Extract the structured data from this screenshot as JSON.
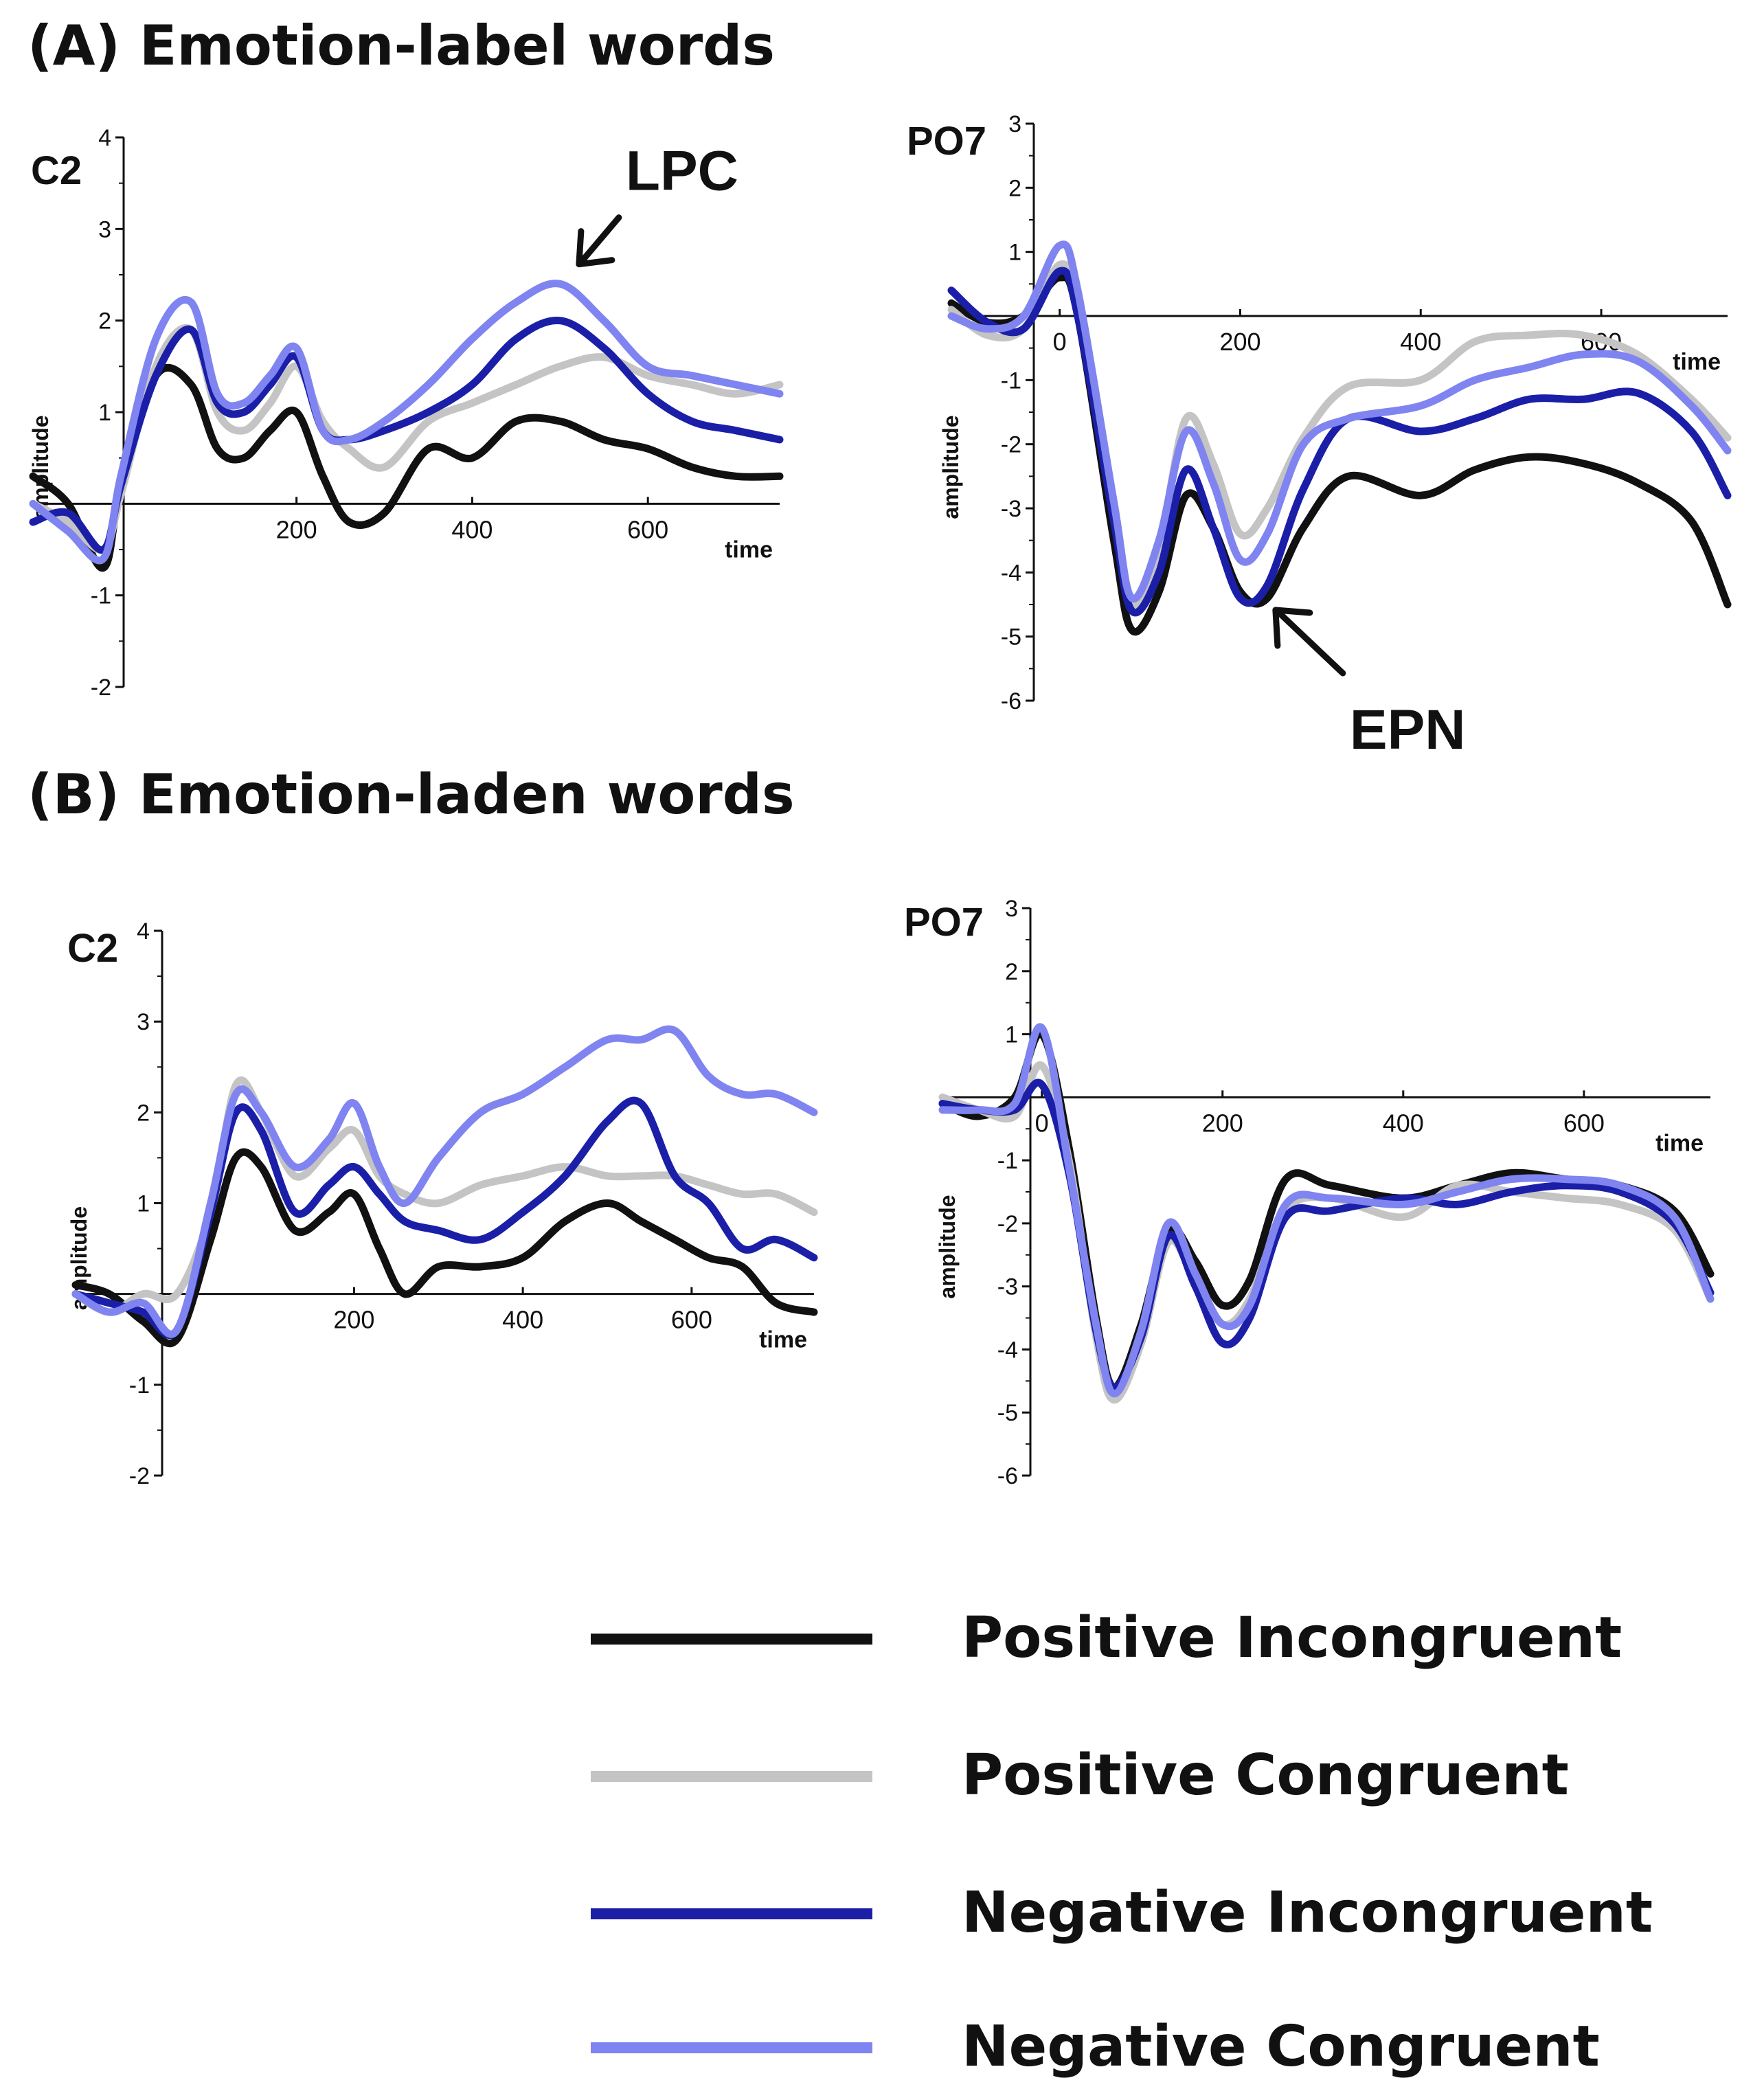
{
  "section_a_title": "(A) Emotion-label words",
  "section_b_title": "(B) Emotion-laden words",
  "legend": [
    {
      "label": "Positive Incongruent",
      "color": "#111111"
    },
    {
      "label": "Positive Congruent",
      "color": "#c4c4c4"
    },
    {
      "label": "Negative Incongruent",
      "color": "#1b1fa8"
    },
    {
      "label": "Negative Congruent",
      "color": "#7f84f0"
    }
  ],
  "chart_data": [
    {
      "type": "line",
      "title": "C2",
      "section": "A",
      "xlabel": "time",
      "ylabel": "amplitude",
      "xlim": [
        -100,
        750
      ],
      "ylim": [
        -2,
        4
      ],
      "xticks": [
        200,
        400,
        600
      ],
      "yticks": [
        -2,
        -1,
        1,
        2,
        3,
        4
      ],
      "annotation": {
        "text": "LPC",
        "at": [
          520,
          2.6
        ]
      },
      "x": [
        -100,
        -60,
        -20,
        0,
        40,
        80,
        110,
        140,
        170,
        200,
        230,
        260,
        300,
        350,
        400,
        450,
        500,
        550,
        600,
        650,
        700,
        750
      ],
      "series": [
        {
          "name": "Positive Incongruent",
          "values": [
            0.3,
            0.0,
            -0.7,
            0.2,
            1.4,
            1.3,
            0.6,
            0.5,
            0.8,
            1.0,
            0.3,
            -0.2,
            -0.1,
            0.6,
            0.5,
            0.9,
            0.9,
            0.7,
            0.6,
            0.4,
            0.3,
            0.3
          ]
        },
        {
          "name": "Positive Congruent",
          "values": [
            0.0,
            -0.2,
            -0.5,
            0.1,
            1.5,
            1.9,
            1.0,
            0.8,
            1.1,
            1.5,
            0.9,
            0.6,
            0.4,
            0.9,
            1.1,
            1.3,
            1.5,
            1.6,
            1.4,
            1.3,
            1.2,
            1.3
          ]
        },
        {
          "name": "Negative Incongruent",
          "values": [
            -0.2,
            -0.1,
            -0.5,
            0.2,
            1.4,
            1.9,
            1.1,
            1.0,
            1.3,
            1.6,
            0.8,
            0.7,
            0.8,
            1.0,
            1.3,
            1.8,
            2.0,
            1.7,
            1.2,
            0.9,
            0.8,
            0.7
          ]
        },
        {
          "name": "Negative Congruent",
          "values": [
            0.0,
            -0.3,
            -0.6,
            0.3,
            1.8,
            2.2,
            1.2,
            1.1,
            1.4,
            1.7,
            0.8,
            0.7,
            0.9,
            1.3,
            1.8,
            2.2,
            2.4,
            2.0,
            1.5,
            1.4,
            1.3,
            1.2
          ]
        }
      ]
    },
    {
      "type": "line",
      "title": "PO7",
      "section": "A",
      "xlabel": "time",
      "ylabel": "amplitude",
      "xlim": [
        -120,
        740
      ],
      "ylim": [
        -6,
        3
      ],
      "xticks": [
        0,
        200,
        400,
        600
      ],
      "yticks": [
        -6,
        -5,
        -4,
        -3,
        -2,
        -1,
        1,
        2,
        3
      ],
      "annotation": {
        "text": "EPN",
        "at": [
          230,
          -4.5
        ]
      },
      "x": [
        -120,
        -80,
        -40,
        0,
        20,
        60,
        80,
        110,
        140,
        170,
        200,
        230,
        270,
        320,
        400,
        460,
        520,
        580,
        640,
        700,
        740
      ],
      "series": [
        {
          "name": "Positive Incongruent",
          "values": [
            0.2,
            -0.1,
            0.0,
            0.6,
            0.0,
            -3.5,
            -4.9,
            -4.3,
            -2.8,
            -3.3,
            -4.3,
            -4.4,
            -3.3,
            -2.5,
            -2.8,
            -2.4,
            -2.2,
            -2.3,
            -2.6,
            -3.2,
            -4.5
          ]
        },
        {
          "name": "Positive Congruent",
          "values": [
            0.1,
            -0.3,
            -0.2,
            0.8,
            0.1,
            -3.0,
            -4.5,
            -3.6,
            -1.6,
            -2.3,
            -3.4,
            -3.0,
            -1.9,
            -1.1,
            -1.0,
            -0.4,
            -0.3,
            -0.3,
            -0.6,
            -1.3,
            -1.9
          ]
        },
        {
          "name": "Negative Incongruent",
          "values": [
            0.4,
            -0.1,
            -0.2,
            0.7,
            0.0,
            -3.2,
            -4.6,
            -4.0,
            -2.4,
            -3.3,
            -4.4,
            -4.2,
            -2.7,
            -1.6,
            -1.8,
            -1.6,
            -1.3,
            -1.3,
            -1.2,
            -1.8,
            -2.8
          ]
        },
        {
          "name": "Negative Congruent",
          "values": [
            0.0,
            -0.2,
            0.0,
            1.1,
            0.4,
            -2.9,
            -4.4,
            -3.5,
            -1.8,
            -2.6,
            -3.8,
            -3.4,
            -2.0,
            -1.6,
            -1.4,
            -1.0,
            -0.8,
            -0.6,
            -0.7,
            -1.4,
            -2.1
          ]
        }
      ]
    },
    {
      "type": "line",
      "title": "C2",
      "section": "B",
      "xlabel": "time",
      "ylabel": "amplitude",
      "xlim": [
        -130,
        745
      ],
      "ylim": [
        -2,
        4
      ],
      "xticks": [
        200,
        400,
        600
      ],
      "yticks": [
        -2,
        -1,
        1,
        2,
        3,
        4
      ],
      "x": [
        -130,
        -90,
        -50,
        -10,
        30,
        60,
        90,
        130,
        170,
        200,
        230,
        260,
        300,
        350,
        400,
        450,
        500,
        540,
        580,
        620,
        660,
        700,
        745
      ],
      "series": [
        {
          "name": "Positive Incongruent",
          "values": [
            0.1,
            0.0,
            -0.3,
            -0.5,
            0.6,
            1.5,
            1.4,
            0.7,
            0.9,
            1.1,
            0.5,
            0.0,
            0.3,
            0.3,
            0.4,
            0.8,
            1.0,
            0.8,
            0.6,
            0.4,
            0.3,
            -0.1,
            -0.2
          ]
        },
        {
          "name": "Positive Congruent",
          "values": [
            0.0,
            -0.2,
            0.0,
            0.0,
            0.9,
            2.3,
            2.0,
            1.3,
            1.6,
            1.8,
            1.3,
            1.1,
            1.0,
            1.2,
            1.3,
            1.4,
            1.3,
            1.3,
            1.3,
            1.2,
            1.1,
            1.1,
            0.9
          ]
        },
        {
          "name": "Negative Incongruent",
          "values": [
            0.0,
            -0.1,
            -0.2,
            -0.4,
            0.9,
            2.0,
            1.8,
            0.9,
            1.2,
            1.4,
            1.1,
            0.8,
            0.7,
            0.6,
            0.9,
            1.3,
            1.9,
            2.1,
            1.3,
            1.0,
            0.5,
            0.6,
            0.4
          ]
        },
        {
          "name": "Negative Congruent",
          "values": [
            0.0,
            -0.2,
            -0.1,
            -0.4,
            1.0,
            2.2,
            2.0,
            1.4,
            1.7,
            2.1,
            1.4,
            1.0,
            1.5,
            2.0,
            2.2,
            2.5,
            2.8,
            2.8,
            2.9,
            2.4,
            2.2,
            2.2,
            2.0
          ]
        }
      ]
    },
    {
      "type": "line",
      "title": "PO7",
      "section": "B",
      "xlabel": "time",
      "ylabel": "amplitude",
      "xlim": [
        -110,
        740
      ],
      "ylim": [
        -6,
        3
      ],
      "xticks": [
        0,
        200,
        400,
        600
      ],
      "yticks": [
        -6,
        -5,
        -4,
        -3,
        -2,
        -1,
        1,
        2,
        3
      ],
      "x": [
        -110,
        -70,
        -30,
        0,
        30,
        60,
        80,
        110,
        140,
        170,
        200,
        230,
        270,
        320,
        400,
        460,
        520,
        580,
        640,
        700,
        740
      ],
      "series": [
        {
          "name": "Positive Incongruent",
          "values": [
            -0.1,
            -0.3,
            0.0,
            1.0,
            -0.8,
            -3.5,
            -4.6,
            -3.6,
            -2.1,
            -2.6,
            -3.3,
            -2.9,
            -1.3,
            -1.4,
            -1.6,
            -1.4,
            -1.2,
            -1.3,
            -1.4,
            -1.8,
            -2.8
          ]
        },
        {
          "name": "Positive Congruent",
          "values": [
            0.0,
            -0.2,
            -0.3,
            0.5,
            -1.0,
            -3.8,
            -4.8,
            -3.9,
            -2.3,
            -2.9,
            -3.6,
            -3.2,
            -1.8,
            -1.6,
            -1.9,
            -1.4,
            -1.5,
            -1.6,
            -1.7,
            -2.1,
            -3.2
          ]
        },
        {
          "name": "Negative Incongruent",
          "values": [
            -0.1,
            -0.2,
            -0.2,
            0.2,
            -1.2,
            -3.7,
            -4.6,
            -3.8,
            -2.2,
            -3.0,
            -3.9,
            -3.5,
            -1.9,
            -1.8,
            -1.6,
            -1.7,
            -1.5,
            -1.4,
            -1.5,
            -2.0,
            -3.1
          ]
        },
        {
          "name": "Negative Congruent",
          "values": [
            -0.2,
            -0.2,
            -0.1,
            1.1,
            -1.1,
            -3.6,
            -4.7,
            -3.7,
            -2.0,
            -2.8,
            -3.6,
            -3.3,
            -1.7,
            -1.6,
            -1.7,
            -1.5,
            -1.3,
            -1.3,
            -1.4,
            -1.9,
            -3.2
          ]
        }
      ]
    }
  ]
}
